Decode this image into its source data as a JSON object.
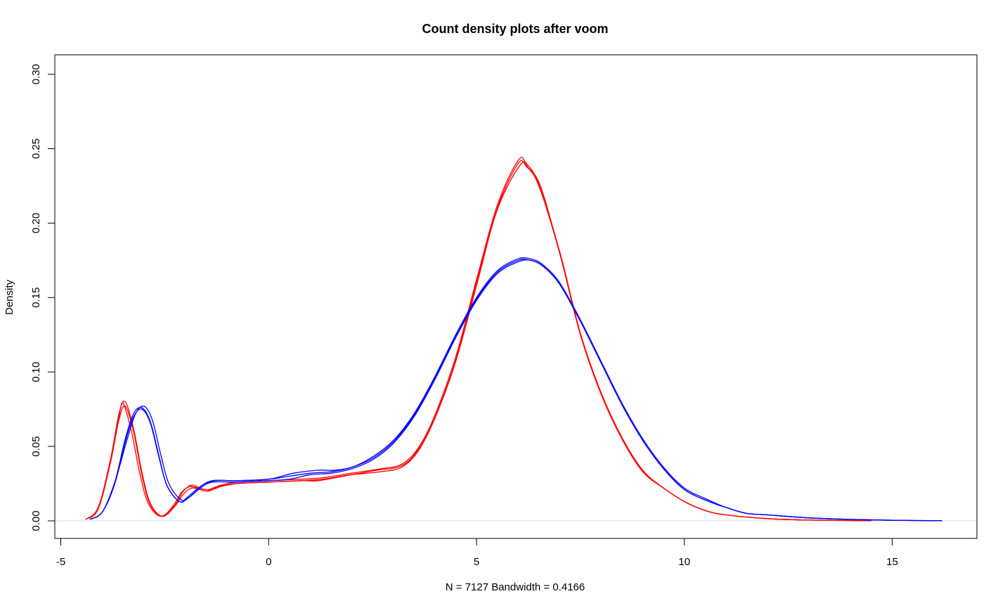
{
  "chart_data": {
    "type": "line",
    "title": "Count density plots after voom",
    "xlabel": "N = 7127   Bandwidth = 0.4166",
    "ylabel": "Density",
    "xlim": [
      -5,
      17
    ],
    "ylim": [
      0,
      0.3
    ],
    "x_ticks": [
      "-5",
      "0",
      "5",
      "10",
      "15"
    ],
    "y_ticks": [
      "0.00",
      "0.05",
      "0.10",
      "0.15",
      "0.20",
      "0.25",
      "0.30"
    ],
    "zero_line": true,
    "grid": false,
    "series": [
      {
        "color": "#ff0000",
        "points": [
          [
            -4.4,
            0.001
          ],
          [
            -4.1,
            0.008
          ],
          [
            -3.8,
            0.04
          ],
          [
            -3.6,
            0.07
          ],
          [
            -3.5,
            0.079
          ],
          [
            -3.3,
            0.06
          ],
          [
            -3.1,
            0.032
          ],
          [
            -2.9,
            0.012
          ],
          [
            -2.6,
            0.003
          ],
          [
            -2.3,
            0.01
          ],
          [
            -2.1,
            0.019
          ],
          [
            -1.9,
            0.023
          ],
          [
            -1.7,
            0.022
          ],
          [
            -1.5,
            0.02
          ],
          [
            -1.2,
            0.023
          ],
          [
            -0.8,
            0.025
          ],
          [
            0,
            0.026
          ],
          [
            0.8,
            0.027
          ],
          [
            1.2,
            0.027
          ],
          [
            2,
            0.031
          ],
          [
            2.6,
            0.034
          ],
          [
            3.2,
            0.037
          ],
          [
            3.6,
            0.048
          ],
          [
            4,
            0.07
          ],
          [
            4.5,
            0.108
          ],
          [
            5,
            0.16
          ],
          [
            5.5,
            0.21
          ],
          [
            6,
            0.24
          ],
          [
            6.2,
            0.238
          ],
          [
            6.5,
            0.225
          ],
          [
            7,
            0.18
          ],
          [
            7.5,
            0.125
          ],
          [
            8,
            0.085
          ],
          [
            8.5,
            0.055
          ],
          [
            9,
            0.033
          ],
          [
            9.5,
            0.022
          ],
          [
            10,
            0.013
          ],
          [
            10.5,
            0.007
          ],
          [
            11,
            0.004
          ],
          [
            12,
            0.0015
          ],
          [
            13,
            0.0005
          ],
          [
            14.5,
            0.0001
          ]
        ]
      },
      {
        "color": "#ff0000",
        "points": [
          [
            -4.4,
            0.001
          ],
          [
            -4.1,
            0.009
          ],
          [
            -3.8,
            0.042
          ],
          [
            -3.6,
            0.072
          ],
          [
            -3.45,
            0.08
          ],
          [
            -3.25,
            0.062
          ],
          [
            -3.05,
            0.033
          ],
          [
            -2.85,
            0.012
          ],
          [
            -2.55,
            0.003
          ],
          [
            -2.25,
            0.011
          ],
          [
            -2.05,
            0.02
          ],
          [
            -1.85,
            0.024
          ],
          [
            -1.65,
            0.022
          ],
          [
            -1.45,
            0.021
          ],
          [
            -1.15,
            0.024
          ],
          [
            -0.75,
            0.026
          ],
          [
            0,
            0.027
          ],
          [
            0.8,
            0.028
          ],
          [
            1.3,
            0.029
          ],
          [
            2,
            0.032
          ],
          [
            2.7,
            0.035
          ],
          [
            3.2,
            0.038
          ],
          [
            3.6,
            0.049
          ],
          [
            4,
            0.071
          ],
          [
            4.5,
            0.11
          ],
          [
            5,
            0.162
          ],
          [
            5.5,
            0.212
          ],
          [
            6,
            0.242
          ],
          [
            6.2,
            0.24
          ],
          [
            6.5,
            0.226
          ],
          [
            7,
            0.181
          ],
          [
            7.5,
            0.126
          ],
          [
            8,
            0.086
          ],
          [
            8.5,
            0.056
          ],
          [
            9,
            0.034
          ],
          [
            9.5,
            0.022
          ],
          [
            10,
            0.013
          ],
          [
            10.5,
            0.007
          ],
          [
            11,
            0.004
          ],
          [
            12,
            0.0015
          ],
          [
            13,
            0.0005
          ],
          [
            14.5,
            0.0001
          ]
        ]
      },
      {
        "color": "#ff0000",
        "points": [
          [
            -4.4,
            0.001
          ],
          [
            -4.1,
            0.008
          ],
          [
            -3.8,
            0.04
          ],
          [
            -3.6,
            0.068
          ],
          [
            -3.45,
            0.077
          ],
          [
            -3.25,
            0.06
          ],
          [
            -3.05,
            0.031
          ],
          [
            -2.85,
            0.011
          ],
          [
            -2.55,
            0.003
          ],
          [
            -2.25,
            0.01
          ],
          [
            -2.05,
            0.018
          ],
          [
            -1.85,
            0.022
          ],
          [
            -1.65,
            0.021
          ],
          [
            -1.45,
            0.02
          ],
          [
            -1.15,
            0.023
          ],
          [
            -0.75,
            0.025
          ],
          [
            0,
            0.026
          ],
          [
            0.8,
            0.027
          ],
          [
            1.3,
            0.028
          ],
          [
            2,
            0.031
          ],
          [
            2.7,
            0.033
          ],
          [
            3.2,
            0.036
          ],
          [
            3.6,
            0.047
          ],
          [
            4,
            0.069
          ],
          [
            4.5,
            0.107
          ],
          [
            5,
            0.158
          ],
          [
            5.5,
            0.209
          ],
          [
            6.05,
            0.239
          ],
          [
            6.25,
            0.237
          ],
          [
            6.55,
            0.224
          ],
          [
            7,
            0.18
          ],
          [
            7.5,
            0.125
          ],
          [
            8,
            0.085
          ],
          [
            8.5,
            0.055
          ],
          [
            9,
            0.033
          ],
          [
            9.5,
            0.022
          ],
          [
            10,
            0.013
          ],
          [
            10.5,
            0.007
          ],
          [
            11,
            0.004
          ],
          [
            12,
            0.0015
          ],
          [
            13,
            0.0005
          ],
          [
            14.5,
            0.0001
          ]
        ]
      },
      {
        "color": "#0000ff",
        "points": [
          [
            -4.3,
            0.001
          ],
          [
            -4,
            0.006
          ],
          [
            -3.7,
            0.026
          ],
          [
            -3.4,
            0.055
          ],
          [
            -3.2,
            0.072
          ],
          [
            -3,
            0.077
          ],
          [
            -2.8,
            0.068
          ],
          [
            -2.6,
            0.045
          ],
          [
            -2.4,
            0.025
          ],
          [
            -2.1,
            0.014
          ],
          [
            -1.9,
            0.016
          ],
          [
            -1.6,
            0.023
          ],
          [
            -1.3,
            0.027
          ],
          [
            -0.8,
            0.027
          ],
          [
            0,
            0.028
          ],
          [
            0.5,
            0.03
          ],
          [
            1,
            0.032
          ],
          [
            1.5,
            0.033
          ],
          [
            2,
            0.036
          ],
          [
            2.5,
            0.043
          ],
          [
            3,
            0.054
          ],
          [
            3.5,
            0.072
          ],
          [
            4,
            0.097
          ],
          [
            4.5,
            0.125
          ],
          [
            5,
            0.15
          ],
          [
            5.5,
            0.168
          ],
          [
            6,
            0.176
          ],
          [
            6.3,
            0.176
          ],
          [
            6.6,
            0.172
          ],
          [
            7,
            0.16
          ],
          [
            7.5,
            0.135
          ],
          [
            8,
            0.107
          ],
          [
            8.5,
            0.079
          ],
          [
            9,
            0.055
          ],
          [
            9.5,
            0.036
          ],
          [
            10,
            0.022
          ],
          [
            10.5,
            0.015
          ],
          [
            11,
            0.009
          ],
          [
            11.5,
            0.005
          ],
          [
            12,
            0.004
          ],
          [
            13,
            0.002
          ],
          [
            14,
            0.001
          ],
          [
            15,
            0.0004
          ],
          [
            16.2,
            0.0001
          ]
        ]
      },
      {
        "color": "#0000ff",
        "points": [
          [
            -4.3,
            0.001
          ],
          [
            -4,
            0.006
          ],
          [
            -3.7,
            0.025
          ],
          [
            -3.45,
            0.053
          ],
          [
            -3.25,
            0.07
          ],
          [
            -3.05,
            0.075
          ],
          [
            -2.85,
            0.066
          ],
          [
            -2.65,
            0.044
          ],
          [
            -2.45,
            0.024
          ],
          [
            -2.15,
            0.013
          ],
          [
            -1.95,
            0.015
          ],
          [
            -1.65,
            0.022
          ],
          [
            -1.35,
            0.026
          ],
          [
            -0.8,
            0.026
          ],
          [
            0,
            0.027
          ],
          [
            0.5,
            0.028
          ],
          [
            1,
            0.031
          ],
          [
            1.5,
            0.032
          ],
          [
            2,
            0.035
          ],
          [
            2.5,
            0.041
          ],
          [
            3,
            0.052
          ],
          [
            3.5,
            0.07
          ],
          [
            4,
            0.095
          ],
          [
            4.5,
            0.123
          ],
          [
            5,
            0.148
          ],
          [
            5.5,
            0.166
          ],
          [
            6,
            0.174
          ],
          [
            6.3,
            0.175
          ],
          [
            6.6,
            0.171
          ],
          [
            7,
            0.159
          ],
          [
            7.5,
            0.134
          ],
          [
            8,
            0.106
          ],
          [
            8.5,
            0.078
          ],
          [
            9,
            0.054
          ],
          [
            9.5,
            0.035
          ],
          [
            10,
            0.021
          ],
          [
            10.5,
            0.014
          ],
          [
            11,
            0.009
          ],
          [
            11.5,
            0.005
          ],
          [
            12,
            0.004
          ],
          [
            13,
            0.002
          ],
          [
            14,
            0.001
          ],
          [
            15,
            0.0004
          ],
          [
            16.2,
            0.0001
          ]
        ]
      },
      {
        "color": "#0000ff",
        "points": [
          [
            -4.3,
            0.001
          ],
          [
            -4,
            0.006
          ],
          [
            -3.7,
            0.026
          ],
          [
            -3.45,
            0.055
          ],
          [
            -3.25,
            0.072
          ],
          [
            -3.05,
            0.076
          ],
          [
            -2.85,
            0.067
          ],
          [
            -2.65,
            0.045
          ],
          [
            -2.45,
            0.024
          ],
          [
            -2.15,
            0.013
          ],
          [
            -1.95,
            0.016
          ],
          [
            -1.65,
            0.023
          ],
          [
            -1.35,
            0.027
          ],
          [
            -0.8,
            0.027
          ],
          [
            0,
            0.028
          ],
          [
            0.6,
            0.032
          ],
          [
            1.2,
            0.034
          ],
          [
            1.6,
            0.034
          ],
          [
            2,
            0.036
          ],
          [
            2.5,
            0.042
          ],
          [
            3,
            0.053
          ],
          [
            3.5,
            0.071
          ],
          [
            4,
            0.096
          ],
          [
            4.5,
            0.124
          ],
          [
            5,
            0.149
          ],
          [
            5.5,
            0.167
          ],
          [
            6,
            0.175
          ],
          [
            6.3,
            0.175
          ],
          [
            6.6,
            0.171
          ],
          [
            7,
            0.159
          ],
          [
            7.5,
            0.134
          ],
          [
            8,
            0.106
          ],
          [
            8.5,
            0.078
          ],
          [
            9,
            0.054
          ],
          [
            9.5,
            0.035
          ],
          [
            10,
            0.021
          ],
          [
            10.5,
            0.014
          ],
          [
            11,
            0.009
          ],
          [
            11.5,
            0.005
          ],
          [
            12,
            0.004
          ],
          [
            13,
            0.002
          ],
          [
            14,
            0.001
          ],
          [
            15,
            0.0004
          ],
          [
            16.2,
            0.0001
          ]
        ]
      }
    ]
  }
}
